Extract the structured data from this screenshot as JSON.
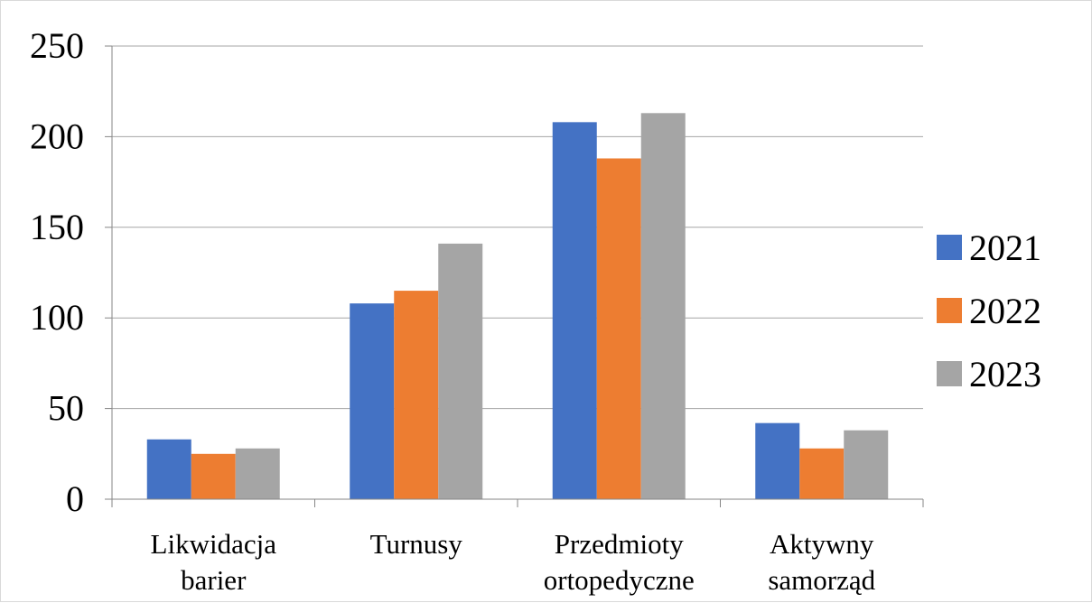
{
  "chart_data": {
    "type": "bar",
    "categories": [
      [
        "Likwidacja",
        "barier"
      ],
      [
        "Turnusy"
      ],
      [
        "Przedmioty",
        "ortopedyczne"
      ],
      [
        "Aktywny",
        "samorząd"
      ]
    ],
    "series": [
      {
        "name": "2021",
        "color": "#4472c4",
        "values": [
          33,
          108,
          208,
          42
        ]
      },
      {
        "name": "2022",
        "color": "#ed7d31",
        "values": [
          25,
          115,
          188,
          28
        ]
      },
      {
        "name": "2023",
        "color": "#a5a5a5",
        "values": [
          28,
          141,
          213,
          38
        ]
      }
    ],
    "title": "",
    "xlabel": "",
    "ylabel": "",
    "ylim": [
      0,
      250
    ],
    "yticks": [
      "0",
      "50",
      "100",
      "150",
      "200",
      "250"
    ],
    "grid": true,
    "legend_position": "right"
  }
}
